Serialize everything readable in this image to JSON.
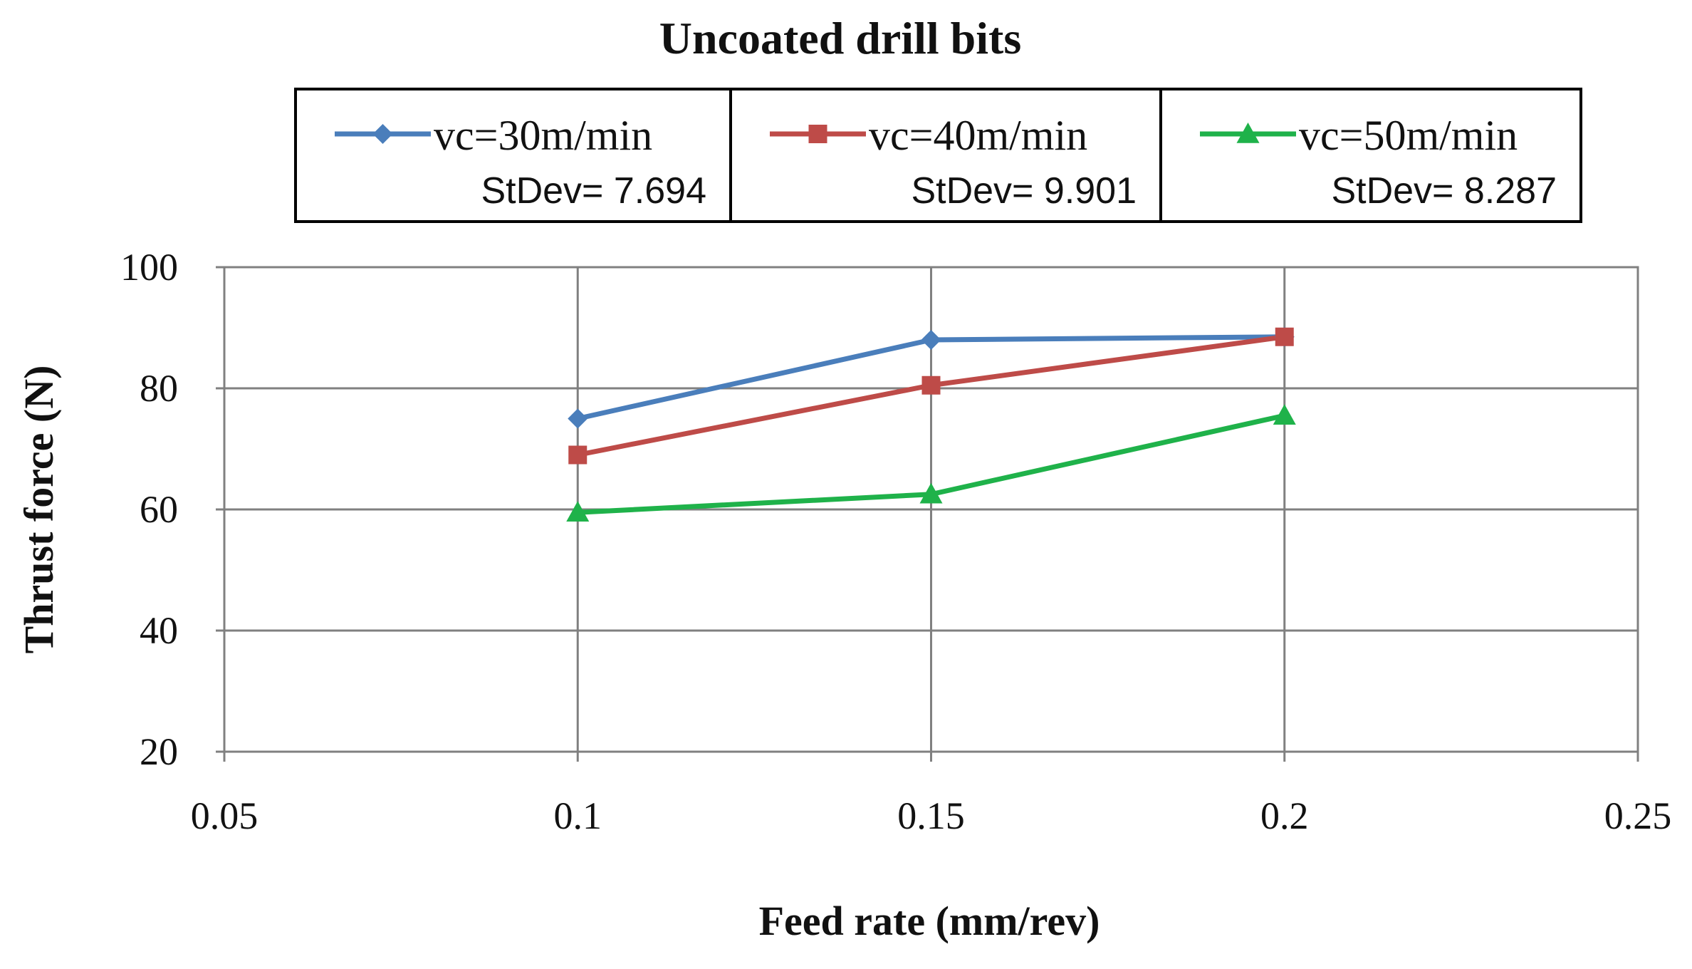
{
  "chart_data": {
    "type": "line",
    "title": "Uncoated drill bits",
    "xlabel": "Feed rate (mm/rev)",
    "ylabel": "Thrust force (N)",
    "xlim": [
      0.05,
      0.25
    ],
    "ylim": [
      20,
      100
    ],
    "x_ticks": [
      "0.05",
      "0.1",
      "0.15",
      "0.2",
      "0.25"
    ],
    "y_ticks": [
      "20",
      "40",
      "60",
      "80",
      "100"
    ],
    "x_tick_values": [
      0.05,
      0.1,
      0.15,
      0.2,
      0.25
    ],
    "y_tick_values": [
      20,
      40,
      60,
      80,
      100
    ],
    "grid": true,
    "legend_position": "top",
    "series": [
      {
        "name": "vc=30m/min",
        "stdev_label": "StDev= 7.694",
        "color": "#4a7ebb",
        "marker": "diamond",
        "x": [
          0.1,
          0.15,
          0.2
        ],
        "values": [
          75,
          88,
          88.5
        ]
      },
      {
        "name": "vc=40m/min",
        "stdev_label": "StDev= 9.901",
        "color": "#be4b48",
        "marker": "square",
        "x": [
          0.1,
          0.15,
          0.2
        ],
        "values": [
          69,
          80.5,
          88.5
        ]
      },
      {
        "name": "vc=50m/min",
        "stdev_label": "StDev= 8.287",
        "color": "#1fb24a",
        "marker": "triangle",
        "x": [
          0.1,
          0.15,
          0.2
        ],
        "values": [
          59.5,
          62.5,
          75.5
        ]
      }
    ]
  }
}
